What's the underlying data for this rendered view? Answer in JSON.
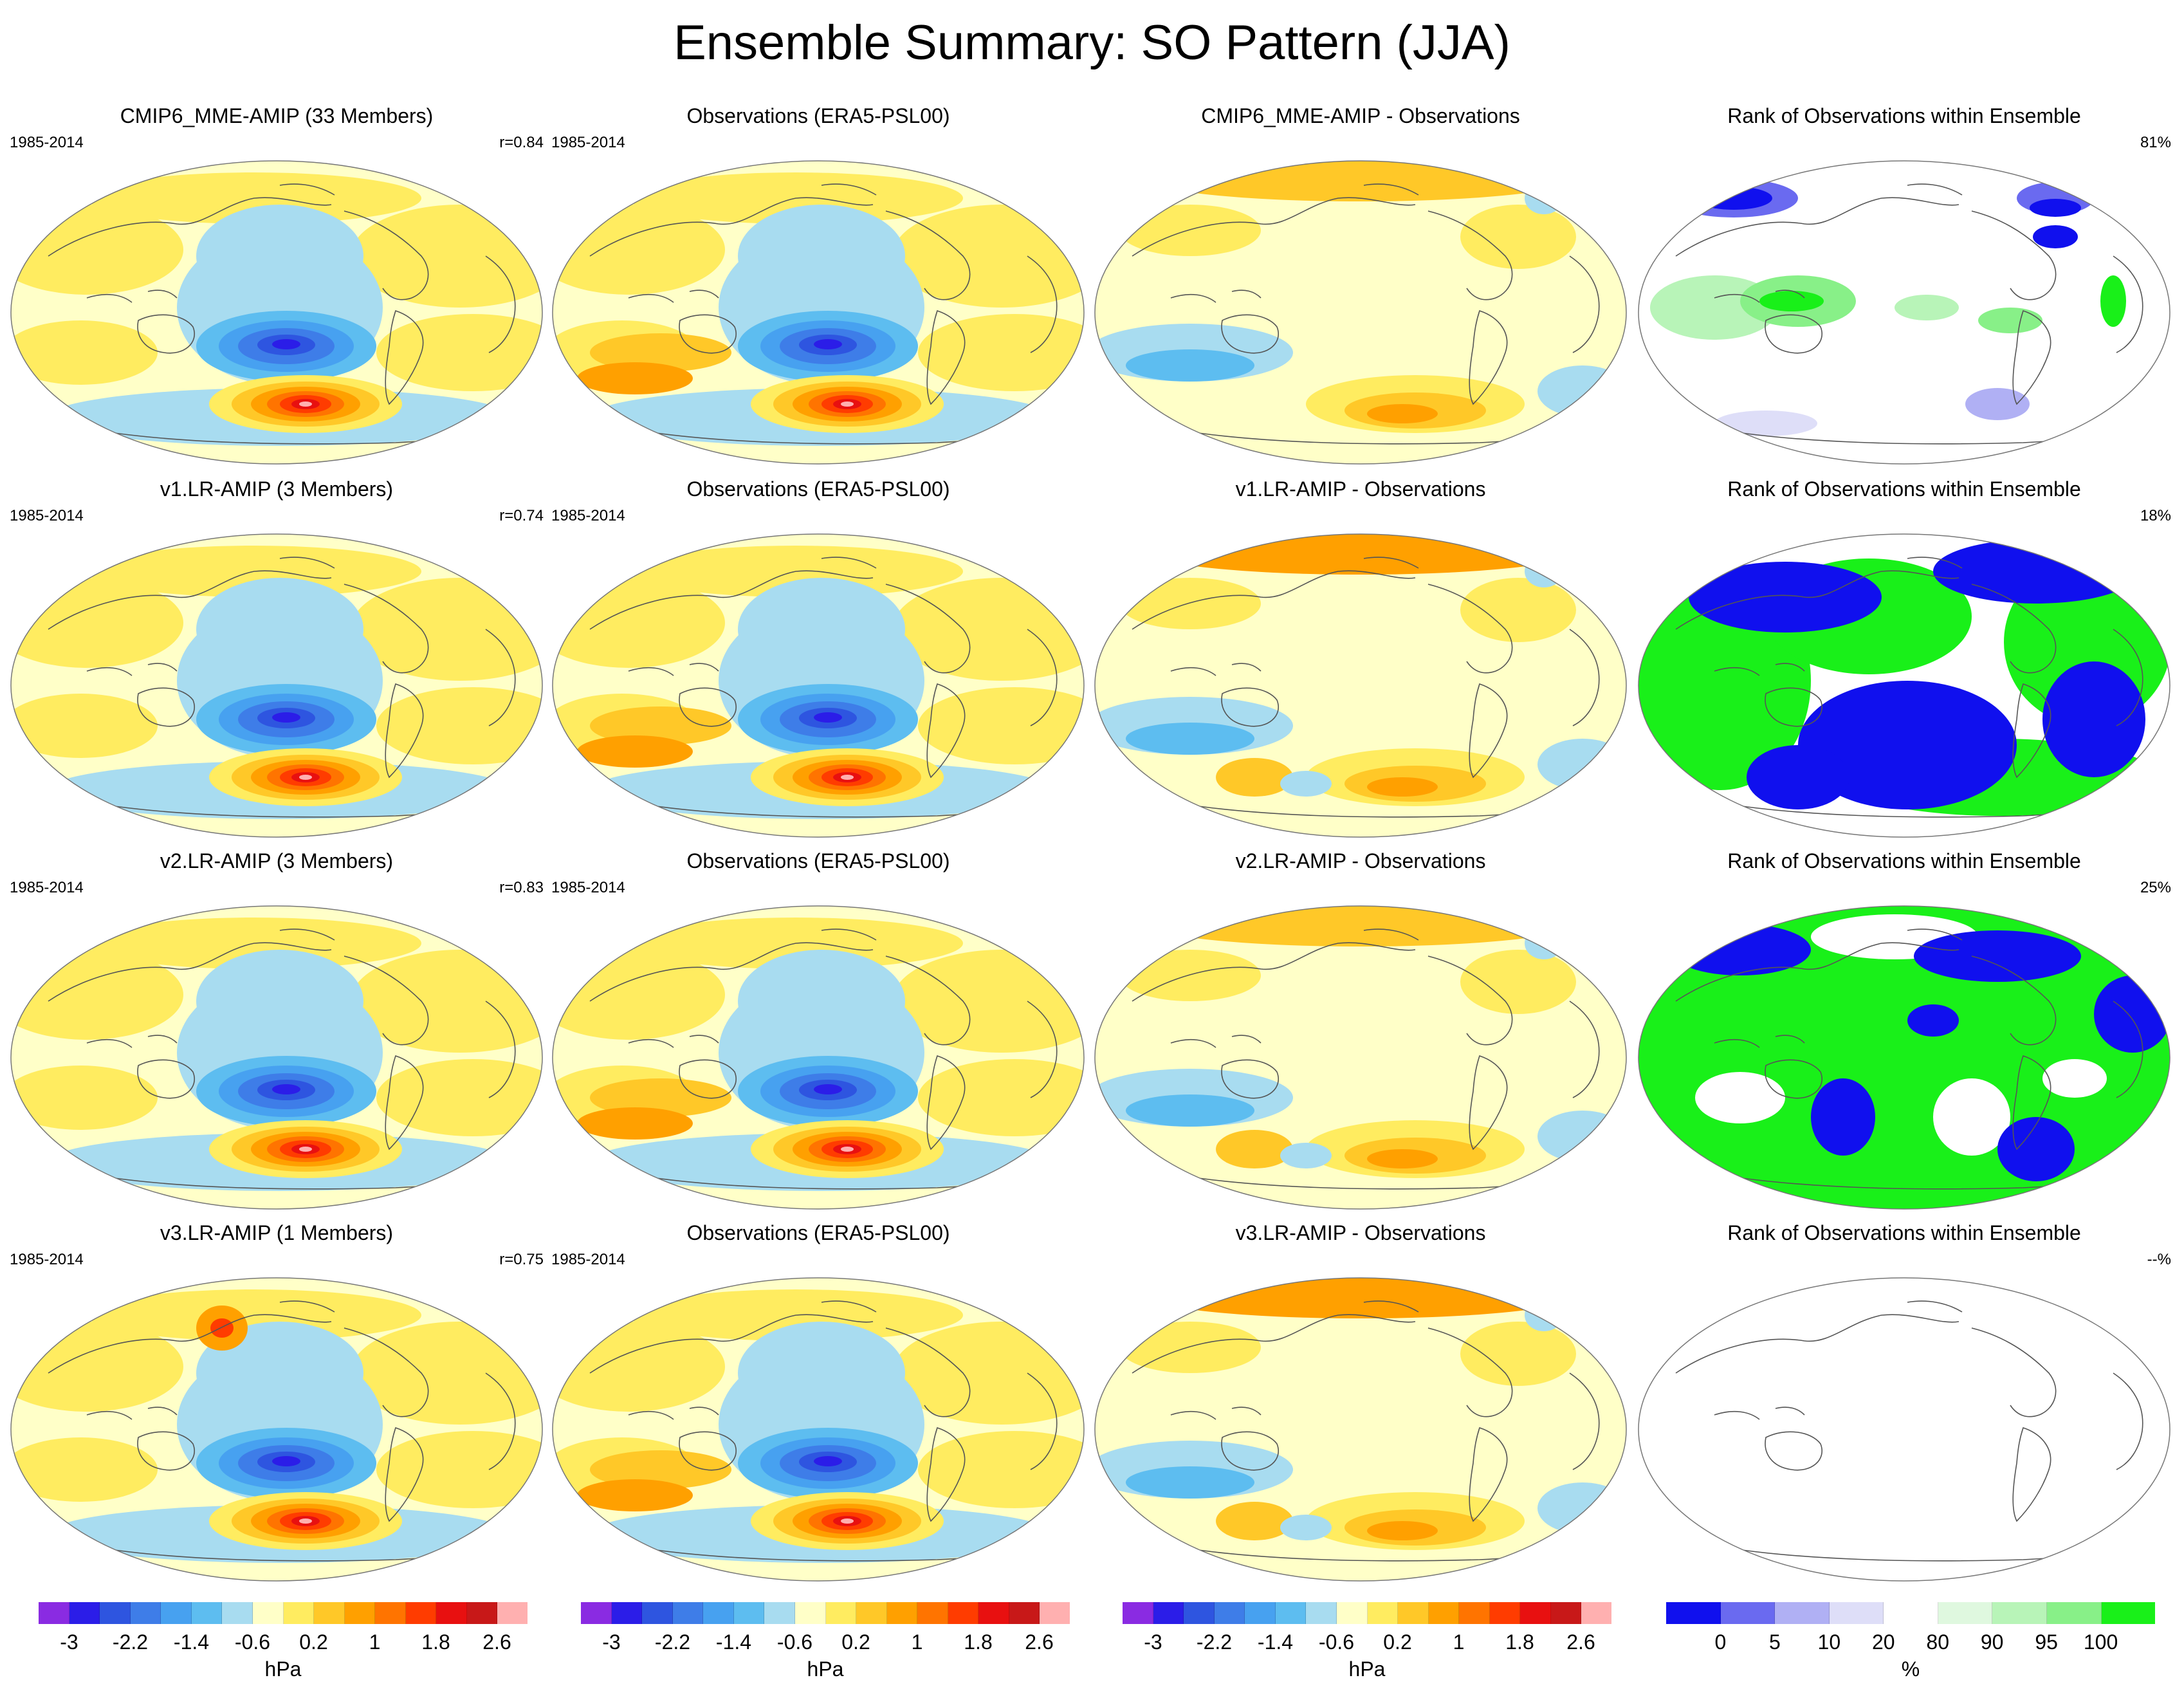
{
  "title": "Ensemble Summary: SO Pattern (JJA)",
  "palette": {
    "hpa": [
      "#8a2be2",
      "#2b1de8",
      "#2e55e0",
      "#3e7de8",
      "#47a1f0",
      "#5dbdf0",
      "#a8dcf0",
      "#ffffc8",
      "#ffec60",
      "#ffc828",
      "#ffa000",
      "#ff7400",
      "#ff3c00",
      "#e81010",
      "#c81818",
      "#ffb0b0"
    ],
    "rank": [
      "#1010ee",
      "#6a6af0",
      "#b0b0f4",
      "#dedef8",
      "#ffffff",
      "#dff8df",
      "#b8f4b8",
      "#88f088",
      "#19f019"
    ]
  },
  "rows": [
    {
      "model": {
        "title": "CMIP6_MME-AMIP (33 Members)",
        "years": "1985-2014",
        "stat": "r=0.84"
      },
      "obs": {
        "title": "Observations (ERA5-PSL00)",
        "years": "1985-2014"
      },
      "diff": {
        "title": "CMIP6_MME-AMIP - Observations"
      },
      "rank": {
        "title": "Rank of Observations within Ensemble",
        "stat": "81%",
        "pattern": "sparse"
      }
    },
    {
      "model": {
        "title": "v1.LR-AMIP (3 Members)",
        "years": "1985-2014",
        "stat": "r=0.74"
      },
      "obs": {
        "title": "Observations (ERA5-PSL00)",
        "years": "1985-2014"
      },
      "diff": {
        "title": "v1.LR-AMIP - Observations"
      },
      "rank": {
        "title": "Rank of Observations within Ensemble",
        "stat": "18%",
        "pattern": "blue-green"
      }
    },
    {
      "model": {
        "title": "v2.LR-AMIP (3 Members)",
        "years": "1985-2014",
        "stat": "r=0.83"
      },
      "obs": {
        "title": "Observations (ERA5-PSL00)",
        "years": "1985-2014"
      },
      "diff": {
        "title": "v2.LR-AMIP - Observations"
      },
      "rank": {
        "title": "Rank of Observations within Ensemble",
        "stat": "25%",
        "pattern": "green-dominant"
      }
    },
    {
      "model": {
        "title": "v3.LR-AMIP (1 Members)",
        "years": "1985-2014",
        "stat": "r=0.75"
      },
      "obs": {
        "title": "Observations (ERA5-PSL00)",
        "years": "1985-2014"
      },
      "diff": {
        "title": "v3.LR-AMIP - Observations"
      },
      "rank": {
        "title": "Rank of Observations within Ensemble",
        "stat": "--%",
        "pattern": "empty"
      }
    }
  ],
  "colorbars": [
    {
      "kind": "hpa",
      "labels": [
        "-3",
        "-2.2",
        "-1.4",
        "-0.6",
        "0.2",
        "1",
        "1.8",
        "2.6"
      ],
      "unit": "hPa"
    },
    {
      "kind": "hpa",
      "labels": [
        "-3",
        "-2.2",
        "-1.4",
        "-0.6",
        "0.2",
        "1",
        "1.8",
        "2.6"
      ],
      "unit": "hPa"
    },
    {
      "kind": "hpa",
      "labels": [
        "-3",
        "-2.2",
        "-1.4",
        "-0.6",
        "0.2",
        "1",
        "1.8",
        "2.6"
      ],
      "unit": "hPa"
    },
    {
      "kind": "rank",
      "labels": [
        "0",
        "5",
        "10",
        "20",
        "80",
        "90",
        "95",
        "100"
      ],
      "unit": "%"
    }
  ]
}
